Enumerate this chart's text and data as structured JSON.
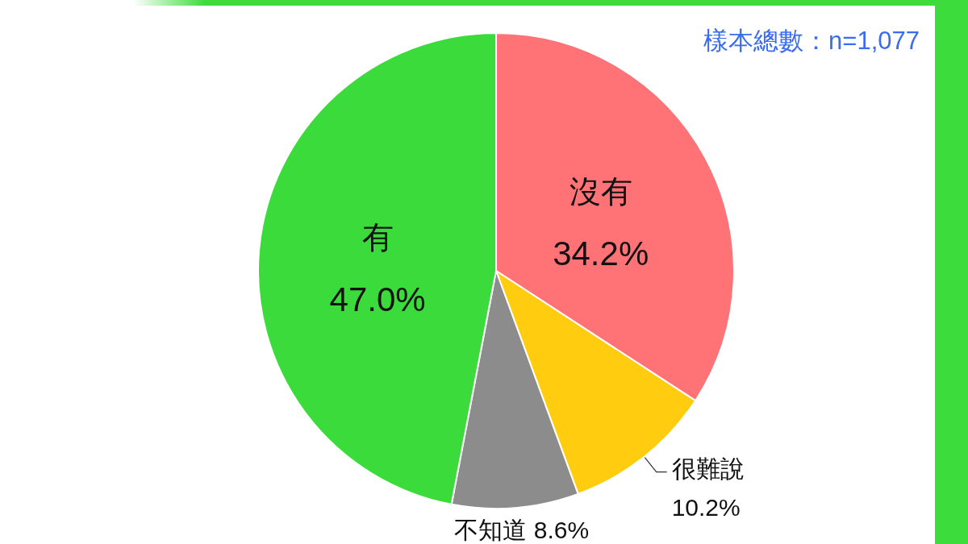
{
  "chart_data": {
    "type": "pie",
    "categories": [
      "沒有",
      "很難說",
      "不知道",
      "有"
    ],
    "values": [
      34.2,
      10.2,
      8.6,
      47.0
    ],
    "colors": [
      "#ff7377",
      "#ffcc0f",
      "#8c8c8c",
      "#3cdb3c"
    ],
    "value_labels": [
      "34.2%",
      "10.2%",
      "8.6%",
      "47.0%"
    ],
    "annotations": [
      "樣本總數：n=1,077"
    ]
  }
}
